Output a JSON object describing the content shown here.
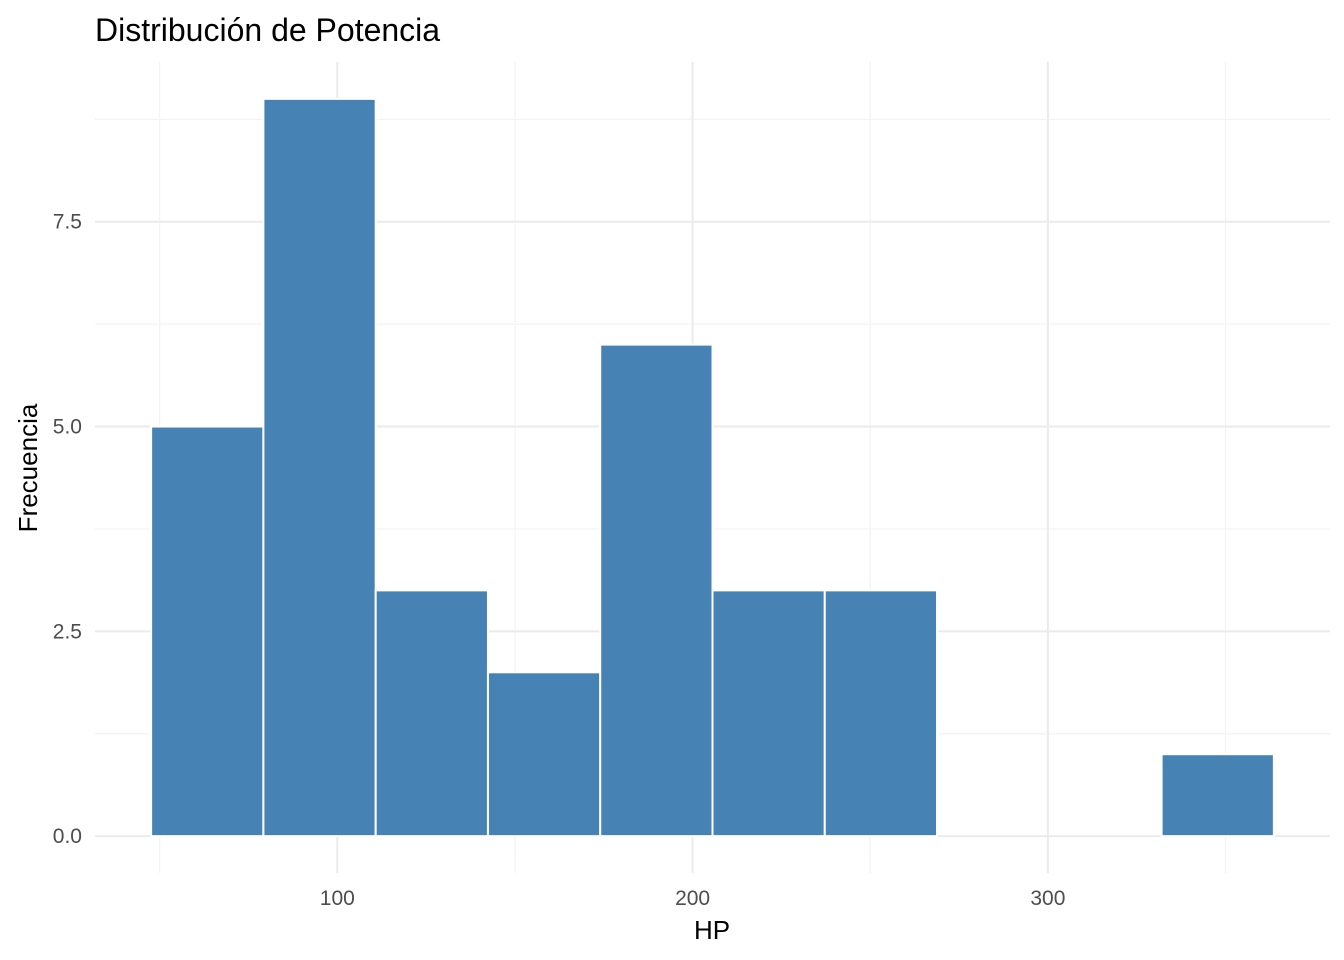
{
  "chart_data": {
    "type": "bar",
    "title": "Distribución de Potencia",
    "xlabel": "HP",
    "ylabel": "Frecuencia",
    "bins": [
      {
        "x0": 47.6,
        "x1": 79.2,
        "count": 5
      },
      {
        "x0": 79.2,
        "x1": 110.8,
        "count": 9
      },
      {
        "x0": 110.8,
        "x1": 142.4,
        "count": 3
      },
      {
        "x0": 142.4,
        "x1": 174.0,
        "count": 2
      },
      {
        "x0": 174.0,
        "x1": 205.6,
        "count": 6
      },
      {
        "x0": 205.6,
        "x1": 237.2,
        "count": 3
      },
      {
        "x0": 237.2,
        "x1": 268.8,
        "count": 3
      },
      {
        "x0": 268.8,
        "x1": 300.4,
        "count": 0
      },
      {
        "x0": 300.4,
        "x1": 332.0,
        "count": 0
      },
      {
        "x0": 332.0,
        "x1": 363.6,
        "count": 1
      }
    ],
    "xlim": [
      31.8,
      379.4
    ],
    "ylim": [
      -0.45,
      9.45
    ],
    "x_ticks": [
      100,
      200,
      300
    ],
    "x_tick_labels": [
      "100",
      "200",
      "300"
    ],
    "x_minor": [
      50,
      150,
      250,
      350
    ],
    "y_ticks": [
      0,
      2.5,
      5,
      7.5
    ],
    "y_tick_labels": [
      "0.0",
      "2.5",
      "5.0",
      "7.5"
    ],
    "y_minor": [
      1.25,
      3.75,
      6.25,
      8.75
    ],
    "grid": true,
    "bar_fill": "#4682b4",
    "bar_outline": "#ffffff",
    "background": "#ffffff"
  }
}
